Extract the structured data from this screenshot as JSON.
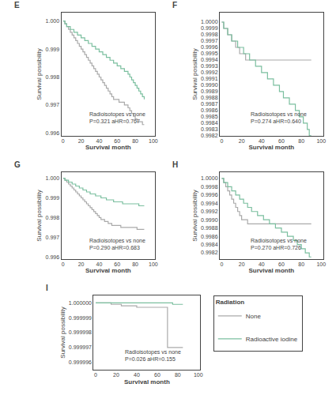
{
  "chart_data": [
    {
      "type": "step",
      "title": "E",
      "xlabel": "Survival month",
      "ylabel": "Survival possibility",
      "annotations": [
        "Radioisotopes vs none\nP=0.321 aHR=0.767"
      ],
      "grid": false,
      "xlim": [
        -2,
        102
      ],
      "xticks": [
        0,
        20,
        40,
        60,
        80,
        100
      ],
      "ylim": [
        0.9959,
        1.0003
      ],
      "yticks": [
        0.996,
        0.997,
        0.998,
        0.999,
        {
          "value": 1.0,
          "label": "1.000"
        }
      ],
      "x": [
        0,
        2,
        4,
        6,
        8,
        10,
        12,
        14,
        16,
        18,
        20,
        22,
        24,
        26,
        28,
        30,
        32,
        34,
        36,
        38,
        40,
        42,
        44,
        46,
        48,
        50,
        52,
        54,
        56,
        58,
        60,
        62,
        64,
        66,
        68,
        70,
        72,
        74,
        76,
        78,
        80,
        82,
        84,
        86,
        88,
        90
      ],
      "series": [
        {
          "name": "None",
          "color": "#aaaaaa",
          "values": [
            1.0,
            0.9999,
            0.9998,
            0.9997,
            0.9996,
            0.9995,
            0.9994,
            0.9993,
            0.9992,
            0.9991,
            0.999,
            0.9989,
            0.9988,
            0.9987,
            0.9986,
            0.9985,
            0.9984,
            0.9983,
            0.9982,
            0.9981,
            0.998,
            0.9979,
            0.9978,
            0.9977,
            0.9976,
            0.9975,
            0.9974,
            0.9973,
            0.9972,
            0.9972,
            0.9972,
            0.9971,
            0.9971,
            0.9971,
            0.997,
            0.997,
            0.9969,
            0.9968,
            0.9967,
            0.9966,
            0.9965,
            0.9964,
            0.9964,
            0.9964,
            0.9963,
            0.9963
          ]
        },
        {
          "name": "Radioactive iodine",
          "color": "#7bbf9f",
          "values": [
            1.0,
            0.9999,
            0.9998,
            0.9998,
            0.9997,
            0.9997,
            0.9996,
            0.9996,
            0.9995,
            0.9995,
            0.9994,
            0.9994,
            0.9993,
            0.9993,
            0.9992,
            0.9992,
            0.9991,
            0.9991,
            0.999,
            0.999,
            0.9989,
            0.9989,
            0.9988,
            0.9988,
            0.9987,
            0.9987,
            0.9986,
            0.9986,
            0.9985,
            0.9985,
            0.9984,
            0.9984,
            0.9983,
            0.9983,
            0.9982,
            0.9982,
            0.9981,
            0.998,
            0.9979,
            0.9978,
            0.9977,
            0.9976,
            0.9975,
            0.9974,
            0.9973,
            0.9972
          ]
        }
      ]
    },
    {
      "type": "step",
      "title": "F",
      "xlabel": "Survival month",
      "ylabel": "Survival possibility",
      "annotations": [
        "Radioisotopes vs none\nP=0.274 aHR=0.640"
      ],
      "grid": false,
      "xlim": [
        -2,
        102
      ],
      "xticks": [
        0,
        20,
        40,
        60,
        80,
        100
      ],
      "ylim": [
        0.9982,
        1.00015
      ],
      "yticks": [
        0.9982,
        0.9983,
        0.9984,
        0.9985,
        0.9986,
        0.9987,
        0.9988,
        0.9989,
        {
          "value": 0.999,
          "label": "0.9990"
        },
        0.9991,
        0.9992,
        0.9993,
        0.9994,
        0.9995,
        0.9996,
        0.9997,
        0.9998,
        0.9999,
        {
          "value": 1.0,
          "label": "1.0000"
        }
      ],
      "x": [
        0,
        2,
        4,
        6,
        8,
        10,
        12,
        14,
        16,
        18,
        20,
        22,
        24,
        26,
        28,
        30,
        32,
        34,
        36,
        38,
        40,
        42,
        44,
        46,
        48,
        50,
        52,
        54,
        56,
        58,
        60,
        62,
        64,
        66,
        68,
        70,
        72,
        74,
        76,
        78,
        80,
        82,
        84,
        86,
        88,
        90
      ],
      "series": [
        {
          "name": "None",
          "color": "#aaaaaa",
          "values": [
            1.0,
            0.9999,
            0.9999,
            0.9998,
            0.9998,
            0.9997,
            0.9997,
            0.9996,
            0.9996,
            0.9995,
            0.9995,
            0.9995,
            0.9994,
            0.9994,
            0.9994,
            0.9994,
            0.9994,
            0.9994,
            0.9994,
            0.9994,
            0.9994,
            0.9994,
            0.9994,
            0.9994,
            0.9994,
            0.9994,
            0.9994,
            0.9994,
            0.9994,
            0.9994,
            0.9994,
            0.9994,
            0.9994,
            0.9994,
            0.9994,
            0.9994,
            0.9994,
            0.9994,
            0.9994,
            0.9994,
            0.9994,
            0.9994,
            0.9994,
            0.9994,
            0.9994,
            0.9994
          ]
        },
        {
          "name": "Radioactive iodine",
          "color": "#7bbf9f",
          "values": [
            1.0,
            0.9999,
            0.9999,
            0.9998,
            0.9998,
            0.9997,
            0.9997,
            0.9997,
            0.9996,
            0.9996,
            0.9996,
            0.9995,
            0.9995,
            0.9995,
            0.9994,
            0.9994,
            0.9994,
            0.9993,
            0.9993,
            0.9993,
            0.9992,
            0.9992,
            0.9992,
            0.9991,
            0.9991,
            0.9991,
            0.999,
            0.999,
            0.999,
            0.9989,
            0.9989,
            0.9988,
            0.9988,
            0.9988,
            0.9987,
            0.9987,
            0.9987,
            0.9986,
            0.9986,
            0.9985,
            0.9985,
            0.9984,
            0.9984,
            0.9983,
            0.9982,
            0.9982
          ]
        }
      ]
    },
    {
      "type": "step",
      "title": "G",
      "xlabel": "Survival month",
      "ylabel": "Survival possibility",
      "annotations": [
        "Radioisotopes vs none\nP=0.290 aHR=0.683"
      ],
      "grid": false,
      "xlim": [
        -2,
        102
      ],
      "xticks": [
        0,
        20,
        40,
        60,
        80,
        100
      ],
      "ylim": [
        0.9959,
        1.0003
      ],
      "yticks": [
        0.996,
        0.997,
        0.998,
        0.999,
        {
          "value": 1.0,
          "label": "1.000"
        }
      ],
      "x": [
        0,
        2,
        4,
        6,
        8,
        10,
        12,
        14,
        16,
        18,
        20,
        22,
        24,
        26,
        28,
        30,
        32,
        34,
        36,
        38,
        40,
        42,
        44,
        46,
        48,
        50,
        52,
        54,
        56,
        58,
        60,
        62,
        64,
        66,
        68,
        70,
        72,
        74,
        76,
        78,
        80,
        82,
        84,
        86,
        88,
        90
      ],
      "series": [
        {
          "name": "None",
          "color": "#aaaaaa",
          "values": [
            1.0,
            0.9999,
            0.9998,
            0.9997,
            0.9996,
            0.9995,
            0.9994,
            0.9993,
            0.9992,
            0.9991,
            0.999,
            0.9989,
            0.9988,
            0.9987,
            0.9986,
            0.9985,
            0.9984,
            0.9983,
            0.9982,
            0.9981,
            0.998,
            0.9979,
            0.9979,
            0.9978,
            0.9978,
            0.9977,
            0.9977,
            0.9976,
            0.9976,
            0.9976,
            0.9976,
            0.9976,
            0.9975,
            0.9975,
            0.9975,
            0.9975,
            0.9975,
            0.9975,
            0.9975,
            0.9975,
            0.9975,
            0.9974,
            0.9974,
            0.9974,
            0.9974,
            0.9974
          ]
        },
        {
          "name": "Radioactive iodine",
          "color": "#7bbf9f",
          "values": [
            1.0,
            0.9999,
            0.9999,
            0.9998,
            0.9998,
            0.9997,
            0.9997,
            0.9996,
            0.9996,
            0.9995,
            0.9995,
            0.9994,
            0.9994,
            0.9993,
            0.9993,
            0.9992,
            0.9992,
            0.9992,
            0.9991,
            0.9991,
            0.9991,
            0.999,
            0.999,
            0.999,
            0.9989,
            0.9989,
            0.9989,
            0.9989,
            0.9988,
            0.9988,
            0.9988,
            0.9988,
            0.9988,
            0.9987,
            0.9987,
            0.9987,
            0.9987,
            0.9987,
            0.9987,
            0.9987,
            0.9987,
            0.9987,
            0.9986,
            0.9986,
            0.9986,
            0.9986
          ]
        }
      ]
    },
    {
      "type": "step",
      "title": "H",
      "xlabel": "Survival month",
      "ylabel": "Survival possibility",
      "annotations": [
        "Radioisotopes vs none\nP=0.270 aHR=0.726"
      ],
      "grid": false,
      "xlim": [
        -2,
        102
      ],
      "xticks": [
        0,
        20,
        40,
        60,
        80,
        100
      ],
      "ylim": [
        0.99805,
        1.00015
      ],
      "yticks": [
        0.9982,
        0.9984,
        0.9986,
        0.9988,
        {
          "value": 0.999,
          "label": "0.9990"
        },
        0.9992,
        0.9994,
        0.9996,
        0.9998,
        {
          "value": 1.0,
          "label": "1.0000"
        }
      ],
      "x": [
        0,
        2,
        4,
        6,
        8,
        10,
        12,
        14,
        16,
        18,
        20,
        22,
        24,
        26,
        28,
        30,
        32,
        34,
        36,
        38,
        40,
        42,
        44,
        46,
        48,
        50,
        52,
        54,
        56,
        58,
        60,
        62,
        64,
        66,
        68,
        70,
        72,
        74,
        76,
        78,
        80,
        82,
        84,
        86,
        88,
        90
      ],
      "series": [
        {
          "name": "None",
          "color": "#aaaaaa",
          "values": [
            1.0,
            0.9999,
            0.9998,
            0.9997,
            0.9996,
            0.9995,
            0.9994,
            0.9993,
            0.9992,
            0.9991,
            0.999,
            0.999,
            0.999,
            0.9989,
            0.9989,
            0.9989,
            0.9989,
            0.9989,
            0.9989,
            0.9989,
            0.9989,
            0.9989,
            0.9989,
            0.9989,
            0.9989,
            0.9989,
            0.9989,
            0.9989,
            0.9989,
            0.9989,
            0.9989,
            0.9989,
            0.9989,
            0.9989,
            0.9989,
            0.9989,
            0.9989,
            0.9989,
            0.9989,
            0.9989,
            0.9989,
            0.9989,
            0.9989,
            0.9989,
            0.9989,
            0.9989
          ]
        },
        {
          "name": "Radioactive iodine",
          "color": "#7bbf9f",
          "values": [
            1.0,
            0.9999,
            0.9999,
            0.9998,
            0.9998,
            0.9997,
            0.9997,
            0.9996,
            0.9996,
            0.9995,
            0.9995,
            0.9994,
            0.9994,
            0.9993,
            0.9993,
            0.9992,
            0.9992,
            0.9992,
            0.9991,
            0.9991,
            0.9991,
            0.999,
            0.999,
            0.999,
            0.9989,
            0.9989,
            0.9989,
            0.9988,
            0.9988,
            0.9988,
            0.9987,
            0.9987,
            0.9987,
            0.9986,
            0.9986,
            0.9986,
            0.9985,
            0.9985,
            0.9984,
            0.9984,
            0.9983,
            0.9983,
            0.9982,
            0.9982,
            0.9981,
            0.9981
          ]
        }
      ]
    },
    {
      "type": "step",
      "title": "I",
      "xlabel": "Survival month",
      "ylabel": "Survival possibility",
      "annotations": [
        "Radioisotopes vs none\nP=0.026 aHR=0.155"
      ],
      "grid": false,
      "legend": "right",
      "legend_title": "Radiation",
      "xlim": [
        -2,
        102
      ],
      "xticks": [
        0,
        20,
        40,
        60,
        80,
        100
      ],
      "ylim": [
        0.9999955,
        1.0000005
      ],
      "yticks": [
        0.999996,
        0.999997,
        0.999998,
        0.999999,
        {
          "value": 1.0,
          "label": "1.000000"
        }
      ],
      "x": [
        0,
        5,
        10,
        15,
        20,
        25,
        30,
        35,
        40,
        45,
        50,
        55,
        60,
        65,
        70,
        75,
        80,
        85
      ],
      "series": [
        {
          "name": "None",
          "color": "#aaaaaa",
          "values": [
            1.0,
            1.0,
            1.0,
            0.9999999,
            0.9999999,
            0.9999998,
            0.9999998,
            0.9999998,
            0.9999997,
            0.9999997,
            0.9999997,
            0.9999997,
            0.9999997,
            0.9999997,
            0.999997,
            0.999997,
            0.999997,
            0.999997
          ]
        },
        {
          "name": "Radioactive iodine",
          "color": "#7bbf9f",
          "values": [
            1.0,
            1.0,
            1.0,
            1.0,
            1.0,
            1.0,
            1.0,
            1.0,
            1.0,
            1.0,
            1.0,
            1.0,
            1.0,
            1.0,
            1.0,
            0.9999999,
            0.9999999,
            0.9999999
          ]
        }
      ]
    }
  ]
}
